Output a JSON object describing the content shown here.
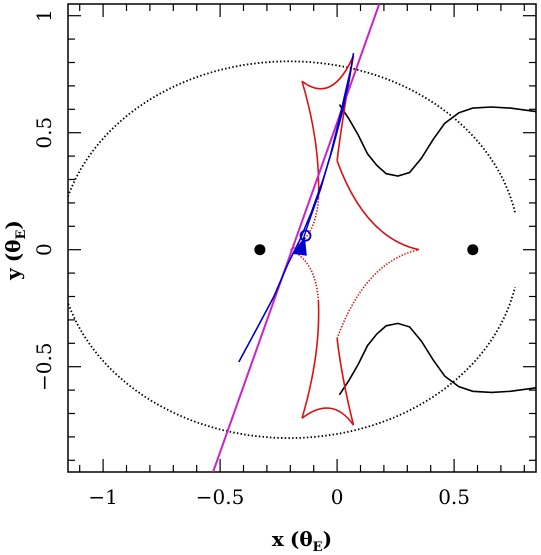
{
  "chart_data": {
    "type": "scatter",
    "xlabel": "x",
    "ylabel": "y",
    "label_unit_symbol": "θ",
    "label_unit_subscript": "E",
    "xlim": [
      -1.15,
      0.85
    ],
    "ylim": [
      -0.95,
      1.05
    ],
    "x_major_ticks": [
      -1,
      -0.5,
      0,
      0.5
    ],
    "x_tick_labels": [
      "−1",
      "−0.5",
      "0",
      "0.5"
    ],
    "y_major_ticks": [
      -0.5,
      0,
      0.5,
      1
    ],
    "y_tick_labels": [
      "−0.5",
      "0",
      "0.5",
      "1"
    ],
    "grid": false,
    "lenses": [
      {
        "x": -0.33,
        "y": 0.0
      },
      {
        "x": 0.58,
        "y": 0.0
      }
    ],
    "caustic": {
      "color": "#dd1111",
      "cusps": [
        [
          -0.2,
          0.0
        ],
        [
          0.35,
          0.0
        ],
        [
          0.07,
          0.83
        ],
        [
          -0.15,
          0.72
        ],
        [
          0.07,
          -0.75
        ],
        [
          -0.15,
          -0.72
        ]
      ]
    },
    "critical_curves": {
      "color": "#000000"
    },
    "source_trajectory": {
      "color": "#cc22cc",
      "x": [
        -0.53,
        0.18
      ],
      "y": [
        -0.95,
        1.05
      ]
    },
    "source_track": {
      "color": "#0000cc"
    },
    "source_marker": {
      "x": -0.135,
      "y": 0.06,
      "color": "#0000cc"
    },
    "arrow": {
      "x": -0.155,
      "y": 0.0,
      "color": "#0000cc"
    }
  }
}
